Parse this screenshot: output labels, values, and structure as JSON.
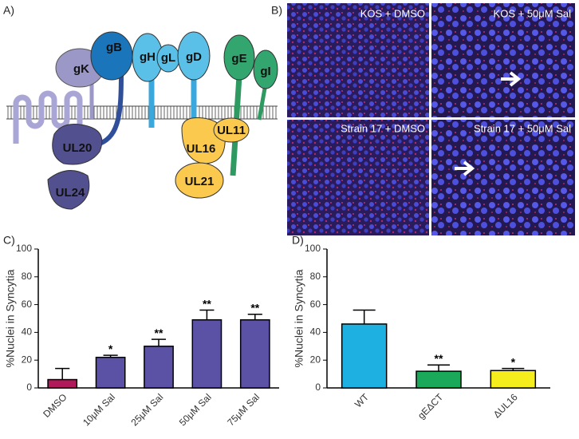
{
  "panel_labels": [
    "A)",
    "B)",
    "C)",
    "D)"
  ],
  "diagram": {
    "labels": [
      "gK",
      "gB",
      "gH",
      "gL",
      "gD",
      "gE",
      "gI",
      "UL20",
      "UL16",
      "UL11",
      "UL21",
      "UL24"
    ]
  },
  "micrographs": [
    "KOS + DMSO",
    "KOS + 50μM Sal",
    "Strain 17 + DMSO",
    "Strain 17 + 50μM Sal"
  ],
  "chart_data": [
    {
      "type": "bar",
      "ylabel": "%Nuclei in Syncytia",
      "categories": [
        "DMSO",
        "10μM Sal",
        "25μM Sal",
        "50μM Sal",
        "75μM Sal"
      ],
      "values": [
        6,
        22,
        30,
        49,
        49
      ],
      "errors": [
        8,
        1.5,
        5,
        7,
        4
      ],
      "colors": [
        "#b0195a",
        "#5b52a6",
        "#5b52a6",
        "#5b52a6",
        "#5b52a6"
      ],
      "significance": [
        null,
        "*",
        "**",
        "**",
        "**"
      ],
      "ylim": [
        0,
        100
      ],
      "yticks": [
        0,
        20,
        40,
        60,
        80,
        100
      ]
    },
    {
      "type": "bar",
      "ylabel": "%Nuclei in Syncytia",
      "categories": [
        "WT",
        "gEΔCT",
        "ΔUL16"
      ],
      "values": [
        46,
        12,
        12.5
      ],
      "errors": [
        10,
        4.5,
        1.5
      ],
      "colors": [
        "#1eb0e0",
        "#1aa85a",
        "#f5ee1c"
      ],
      "significance": [
        null,
        "**",
        "*"
      ],
      "ylim": [
        0,
        100
      ],
      "yticks": [
        0,
        20,
        40,
        60,
        80,
        100
      ]
    }
  ]
}
